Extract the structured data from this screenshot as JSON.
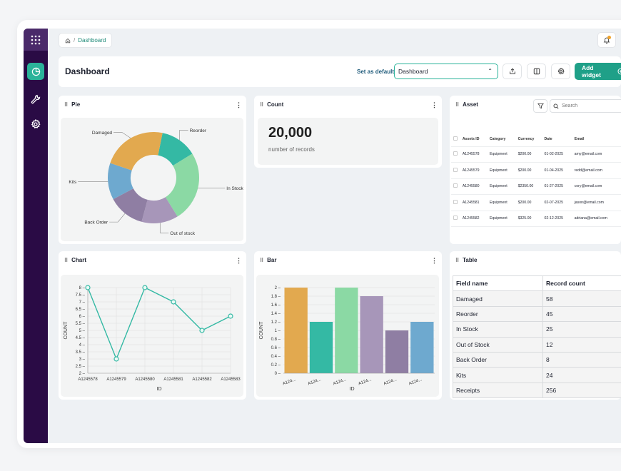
{
  "breadcrumb": {
    "home_icon": "home-icon",
    "separator": "/",
    "current": "Dashboard"
  },
  "header": {
    "title": "Dashboard",
    "set_default_label": "Set as default",
    "select_value": "Dashboard",
    "add_widget_label": "Add widget"
  },
  "sidebar": {
    "icons": [
      "grid-icon",
      "pie-chart-icon",
      "wrench-icon",
      "gear-icon"
    ]
  },
  "colors": {
    "sidebar": "#2a0b45",
    "accent": "#1fa088",
    "notify": "#f0a22a"
  },
  "pie_widget": {
    "title": "Pie",
    "slices": [
      {
        "label": "Reorder",
        "color": "#34b9a4"
      },
      {
        "label": "In Stock",
        "color": "#8bd9a4"
      },
      {
        "label": "Out of stock",
        "color": "#a796b9"
      },
      {
        "label": "Back Order",
        "color": "#8f7ea3"
      },
      {
        "label": "Kits",
        "color": "#6ea9cf"
      },
      {
        "label": "Damaged",
        "color": "#e2a94f"
      }
    ]
  },
  "count_widget": {
    "title": "Count",
    "value": "20,000",
    "label": "number of records"
  },
  "asset_widget": {
    "title": "Asset",
    "search_placeholder": "Search",
    "columns": [
      "Assets ID",
      "Category",
      "Currency",
      "Date",
      "Email"
    ],
    "rows": [
      [
        "A1245578",
        "Equipment",
        "$200.00",
        "01-02-2025",
        "amy@email.com"
      ],
      [
        "A1245579",
        "Equipment",
        "$200.00",
        "01-04-2025",
        "redd@email.com"
      ],
      [
        "A1245580",
        "Equipment",
        "$2350.00",
        "01-27-2025",
        "cory@email.com"
      ],
      [
        "A1245581",
        "Equipment",
        "$200.00",
        "02-07-2025",
        "jason@email.com"
      ],
      [
        "A1245582",
        "Equipment",
        "$325.00",
        "02-12-2025",
        "adriana@email.com"
      ]
    ]
  },
  "line_widget": {
    "title": "Chart"
  },
  "bar_widget": {
    "title": "Bar"
  },
  "table_widget": {
    "title": "Table",
    "columns": [
      "Field name",
      "Record count"
    ],
    "rows": [
      [
        "Damaged",
        "58"
      ],
      [
        "Reorder",
        "45"
      ],
      [
        "In Stock",
        "25"
      ],
      [
        "Out of Stock",
        "12"
      ],
      [
        "Back Order",
        "8"
      ],
      [
        "Kits",
        "24"
      ],
      [
        "Receipts",
        "256"
      ]
    ]
  },
  "chart_data": [
    {
      "type": "pie",
      "categories": [
        "Reorder",
        "In Stock",
        "Out of stock",
        "Back Order",
        "Kits",
        "Damaged"
      ],
      "values": [
        13,
        25,
        13,
        13,
        13,
        23
      ],
      "donut": true
    },
    {
      "type": "line",
      "x": [
        "A1245578",
        "A1245579",
        "A1245580",
        "A1245581",
        "A1245582",
        "A1245583"
      ],
      "values": [
        8,
        3,
        8,
        7,
        5,
        6
      ],
      "xlabel": "ID",
      "ylabel": "COUNT",
      "ylim": [
        2,
        8
      ],
      "yticks": [
        "2",
        "2.5",
        "3",
        "3.5",
        "4",
        "4.5",
        "5",
        "5.5",
        "6",
        "6.5",
        "7",
        "7.5",
        "8"
      ],
      "color": "#34b9a4",
      "grid": true
    },
    {
      "type": "bar",
      "categories": [
        "A124...",
        "A124...",
        "A124...",
        "A124...",
        "A124...",
        "A124..."
      ],
      "values": [
        2,
        1.2,
        2,
        1.8,
        1,
        1.2
      ],
      "colors": [
        "#e2a94f",
        "#34b9a4",
        "#8bd9a4",
        "#a796b9",
        "#8f7ea3",
        "#6ea9cf"
      ],
      "xlabel": "ID",
      "ylabel": "COUNT",
      "ylim": [
        0,
        2
      ],
      "yticks": [
        "0",
        "0.2",
        "0.4",
        "0.6",
        "0.8",
        "1",
        "1.2",
        "1.4",
        "1.6",
        "1.8",
        "2"
      ],
      "grid": true
    }
  ]
}
